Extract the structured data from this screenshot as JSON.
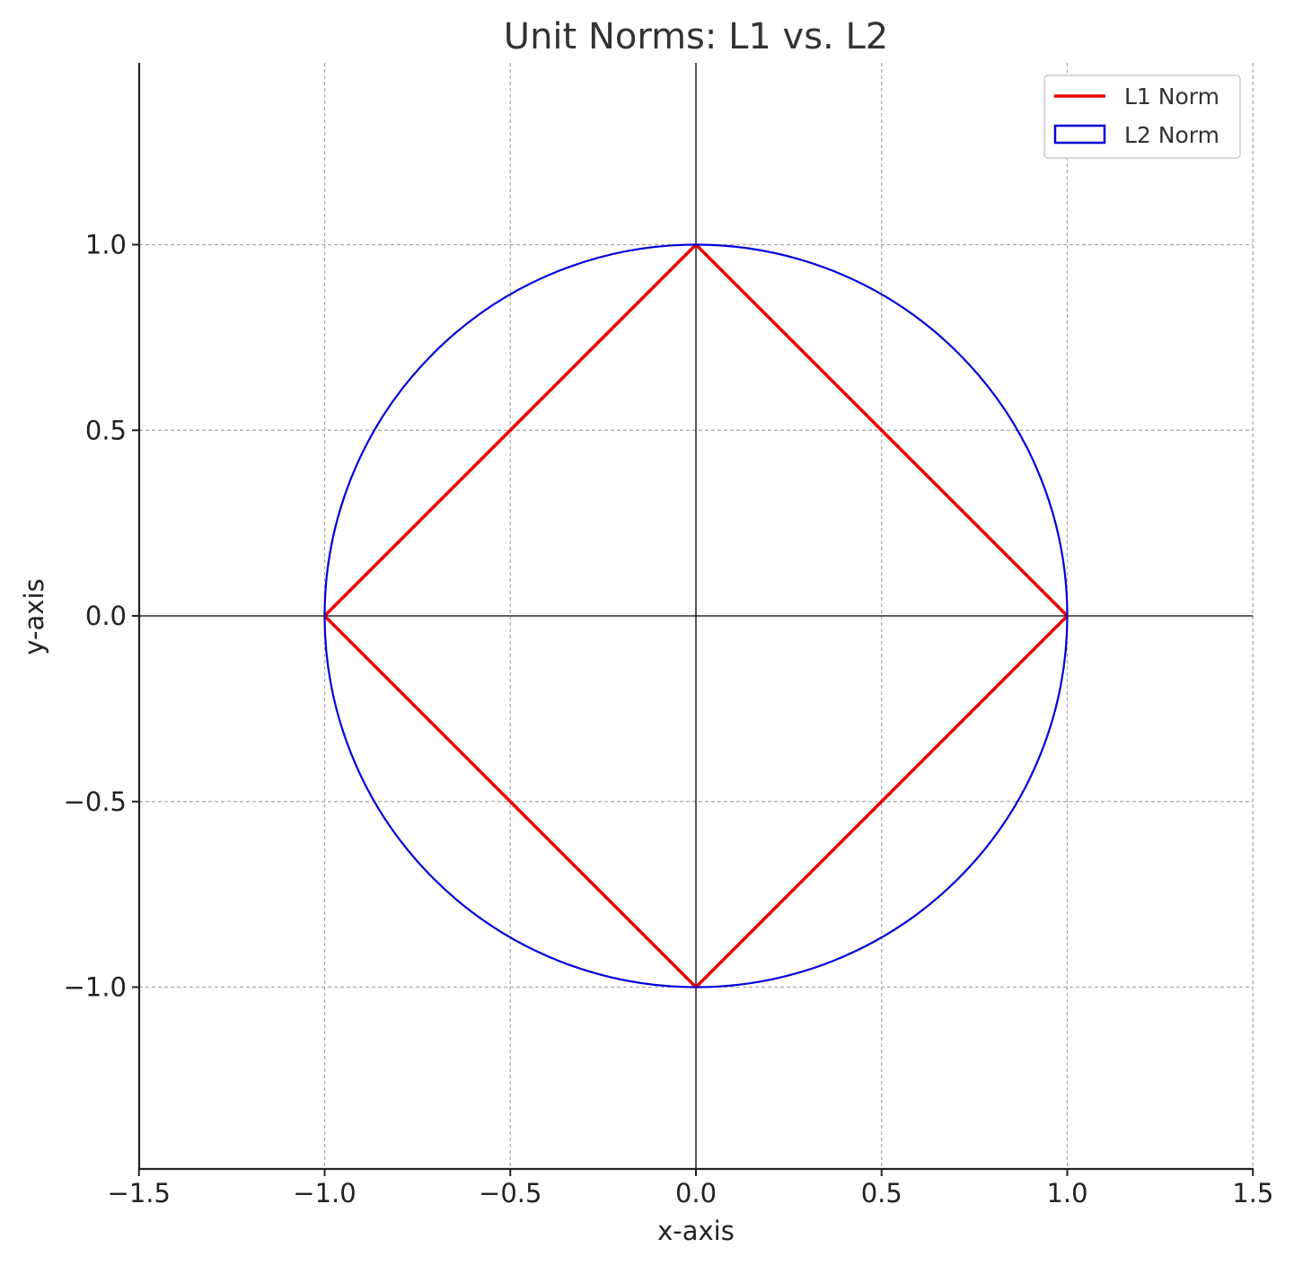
{
  "chart_data": {
    "type": "line",
    "title": "Unit Norms: L1 vs. L2",
    "xlabel": "x-axis",
    "ylabel": "y-axis",
    "xlim": [
      -1.5,
      1.5
    ],
    "ylim": [
      -1.5,
      1.5
    ],
    "xticks": [
      -1.5,
      -1.0,
      -0.5,
      0.0,
      0.5,
      1.0,
      1.5
    ],
    "xtick_labels": [
      "−1.5",
      "−1.0",
      "−0.5",
      "0.0",
      "0.5",
      "1.0",
      "1.5"
    ],
    "yticks": [
      -1.0,
      -0.5,
      0.0,
      0.5,
      1.0
    ],
    "ytick_labels": [
      "−1.0",
      "−0.5",
      "0.0",
      "0.5",
      "1.0"
    ],
    "grid": true,
    "legend_position": "top-right",
    "series": [
      {
        "name": "L1 Norm",
        "kind": "line",
        "color": "#ee0000",
        "x": [
          1,
          0,
          -1,
          0,
          1
        ],
        "y": [
          0,
          1,
          0,
          -1,
          0
        ]
      },
      {
        "name": "L2 Norm",
        "kind": "circle",
        "color": "#0000dd",
        "center": [
          0,
          0
        ],
        "radius": 1
      }
    ]
  }
}
